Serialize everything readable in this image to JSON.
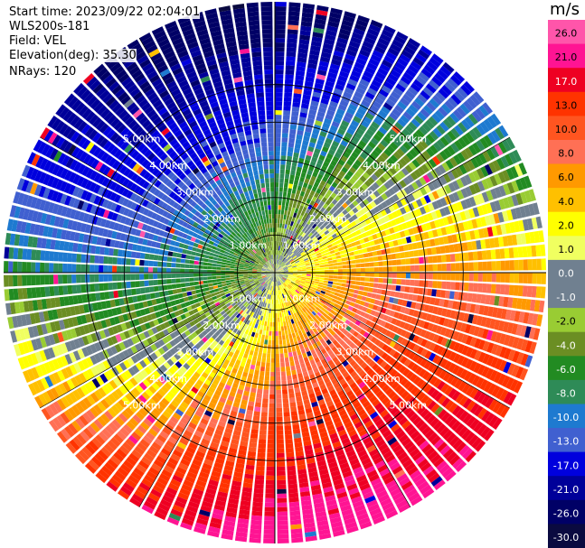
{
  "info": {
    "start_time": "Start time: 2023/09/22 02:04:01",
    "instrument": "WLS200s-181",
    "field": "Field: VEL",
    "elevation": "Elevation(deg): 35.30",
    "nrays": "NRays: 120"
  },
  "chart_data": {
    "type": "ppi",
    "field": "VEL",
    "units": "m/s",
    "n_rays": 120,
    "elevation_deg": 35.3,
    "range_rings_km": [
      1,
      2,
      3,
      4,
      5
    ],
    "range_ring_labels": [
      "1.00km",
      "2.00km",
      "3.00km",
      "4.00km",
      "5.00km"
    ],
    "max_range_km": 7.2,
    "azimuth_spokes_deg": [
      0,
      30,
      60,
      90,
      120,
      150,
      180,
      210,
      240,
      270,
      300,
      330
    ],
    "colorbar": {
      "labels": [
        "26.0",
        "21.0",
        "17.0",
        "13.0",
        "10.0",
        "8.0",
        "6.0",
        "4.0",
        "2.0",
        "1.0",
        "0.0",
        "-1.0",
        "-2.0",
        "-4.0",
        "-6.0",
        "-8.0",
        "-10.0",
        "-13.0",
        "-17.0",
        "-21.0",
        "-26.0",
        "-30.0"
      ],
      "colors": [
        "#ff55aa",
        "#ff1493",
        "#ee0022",
        "#ff3300",
        "#ff5520",
        "#ff7055",
        "#ff9900",
        "#ffc000",
        "#ffff00",
        "#f0ff60",
        "#f5f5f5",
        "#707a88",
        "#99cc33",
        "#6b8e23",
        "#228b22",
        "#2e8b57",
        "#1e7ad0",
        "#4060d0",
        "#0000dd",
        "#000099",
        "#000066",
        "#0a0a40"
      ],
      "colors_upper_to_lower": [
        "#ff55aa",
        "#ff1493",
        "#ee0022",
        "#ff3300",
        "#ff5520",
        "#ff7055",
        "#ff9900",
        "#ffc000",
        "#ffff00",
        "#f0ff60",
        "#708090",
        "#708090",
        "#99cc33",
        "#6b8e23",
        "#228b22",
        "#2e8b57",
        "#1e7ad0",
        "#4060d0",
        "#0000dd",
        "#000099",
        "#000066",
        "#0a0a40"
      ]
    },
    "wind_pattern": {
      "positive_velocity_direction_deg": 120,
      "description_free": false
    }
  }
}
